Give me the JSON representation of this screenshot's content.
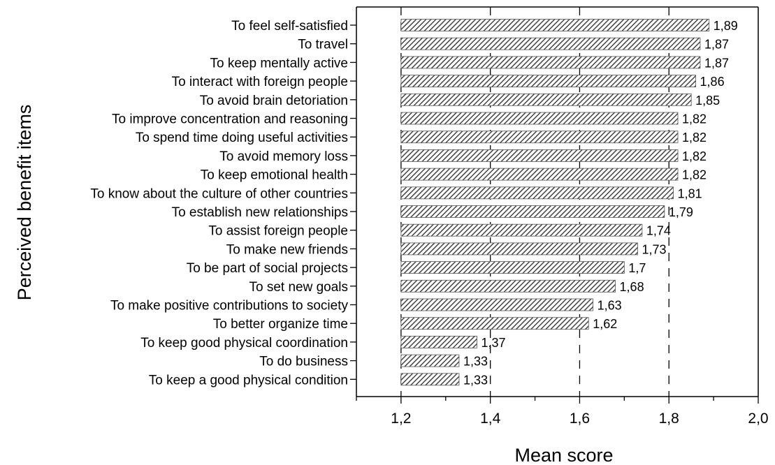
{
  "chart_data": {
    "type": "bar",
    "orientation": "horizontal",
    "xlabel": "Mean score",
    "ylabel": "Perceived benefit items",
    "xlim": [
      1.1,
      2.0
    ],
    "xticks": [
      "1,2",
      "1,4",
      "1,6",
      "1,8",
      "2,0"
    ],
    "bar_base": 1.2,
    "bar_fill": "diagonal-hatch",
    "bar_color": "#555555",
    "grid": "dashed vertical lines at 1,2 1,4 1,6 1,8",
    "categories": [
      "To feel self-satisfied",
      "To travel",
      "To keep mentally active",
      "To interact with foreign people",
      "To avoid brain detoriation",
      "To improve concentration and reasoning",
      "To spend time doing useful activities",
      "To avoid memory loss",
      "To keep emotional health",
      "To know about the culture of other countries",
      "To establish new relationships",
      "To assist foreign people",
      "To make new friends",
      "To be part of social projects",
      "To set new goals",
      "To make positive contributions to society",
      "To better organize time",
      "To keep good physical coordination",
      "To do business",
      "To keep a good physical condition"
    ],
    "values": [
      1.89,
      1.87,
      1.87,
      1.86,
      1.85,
      1.82,
      1.82,
      1.82,
      1.82,
      1.81,
      1.79,
      1.74,
      1.73,
      1.7,
      1.68,
      1.63,
      1.62,
      1.37,
      1.33,
      1.33
    ],
    "value_labels": [
      "1,89",
      "1,87",
      "1,87",
      "1,86",
      "1,85",
      "1,82",
      "1,82",
      "1,82",
      "1,82",
      "1,81",
      "1,79",
      "1,74",
      "1,73",
      "1,7",
      "1,68",
      "1,63",
      "1,62",
      "1,37",
      "1,33",
      "1,33"
    ]
  }
}
